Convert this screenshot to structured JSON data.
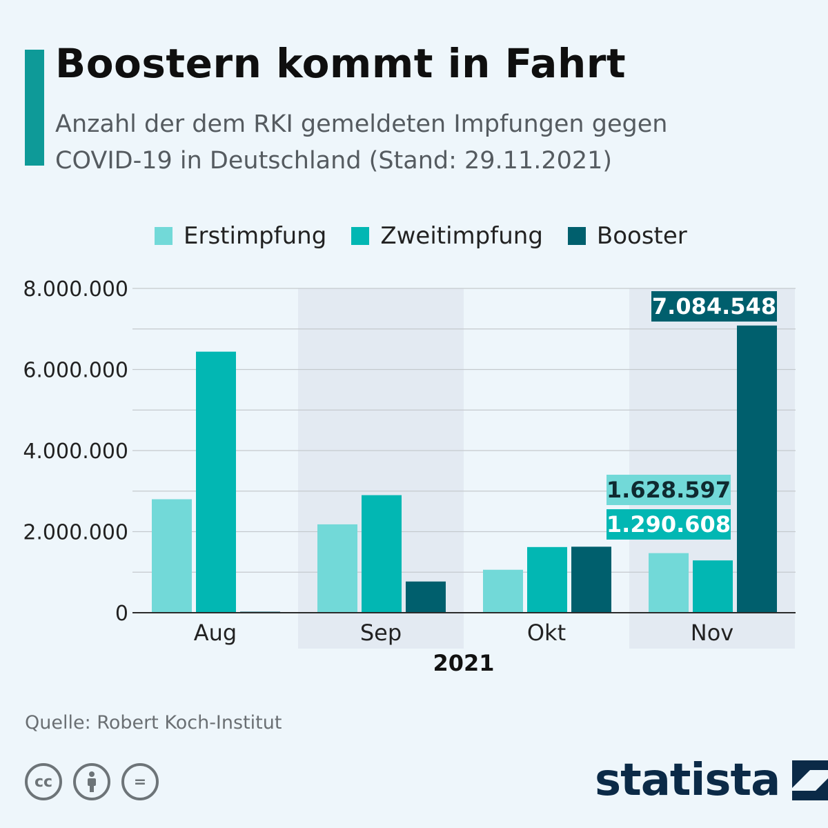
{
  "header": {
    "title": "Boostern kommt in Fahrt",
    "subtitle": "Anzahl der dem RKI gemeldeten Impfungen gegen COVID-19 in Deutschland (Stand: 29.11.2021)"
  },
  "colors": {
    "accent": "#0e9a98",
    "erstimpfung": "#72d9d8",
    "zweitimpfung": "#02b7b3",
    "booster": "#005f6d",
    "band": "#e3eaf2",
    "grid": "#c4c9cd",
    "axis": "#2b2b2b"
  },
  "legend": [
    {
      "label": "Erstimpfung",
      "color": "#72d9d8"
    },
    {
      "label": "Zweitimpfung",
      "color": "#02b7b3"
    },
    {
      "label": "Booster",
      "color": "#005f6d"
    }
  ],
  "chart_data": {
    "type": "bar",
    "categories": [
      "Aug",
      "Sep",
      "Okt",
      "Nov"
    ],
    "xlabel": "2021",
    "ylabel": "",
    "ylim": [
      0,
      8000000
    ],
    "yticks": [
      0,
      2000000,
      4000000,
      6000000,
      8000000
    ],
    "ytick_labels": [
      "0",
      "2.000.000",
      "4.000.000",
      "6.000.000",
      "8.000.000"
    ],
    "grid": true,
    "legend_position": "top",
    "series": [
      {
        "name": "Erstimpfung",
        "values": [
          2800000,
          2180000,
          1060000,
          1470000
        ]
      },
      {
        "name": "Zweitimpfung",
        "values": [
          6440000,
          2900000,
          1620000,
          1290608
        ]
      },
      {
        "name": "Booster",
        "values": [
          20000,
          770000,
          1628597,
          7084548
        ]
      }
    ],
    "data_labels": [
      {
        "text": "7.084.548",
        "series": "Booster",
        "category": "Nov"
      },
      {
        "text": "1.628.597",
        "series": "Booster",
        "category": "Okt"
      },
      {
        "text": "1.290.608",
        "series": "Zweitimpfung",
        "category": "Nov"
      }
    ]
  },
  "footer": {
    "source": "Quelle: Robert Koch-Institut",
    "brand": "statista",
    "license_icons": [
      "cc-icon",
      "attribution-icon",
      "no-derivatives-icon"
    ],
    "cc_text": "cc",
    "nd_text": "="
  }
}
